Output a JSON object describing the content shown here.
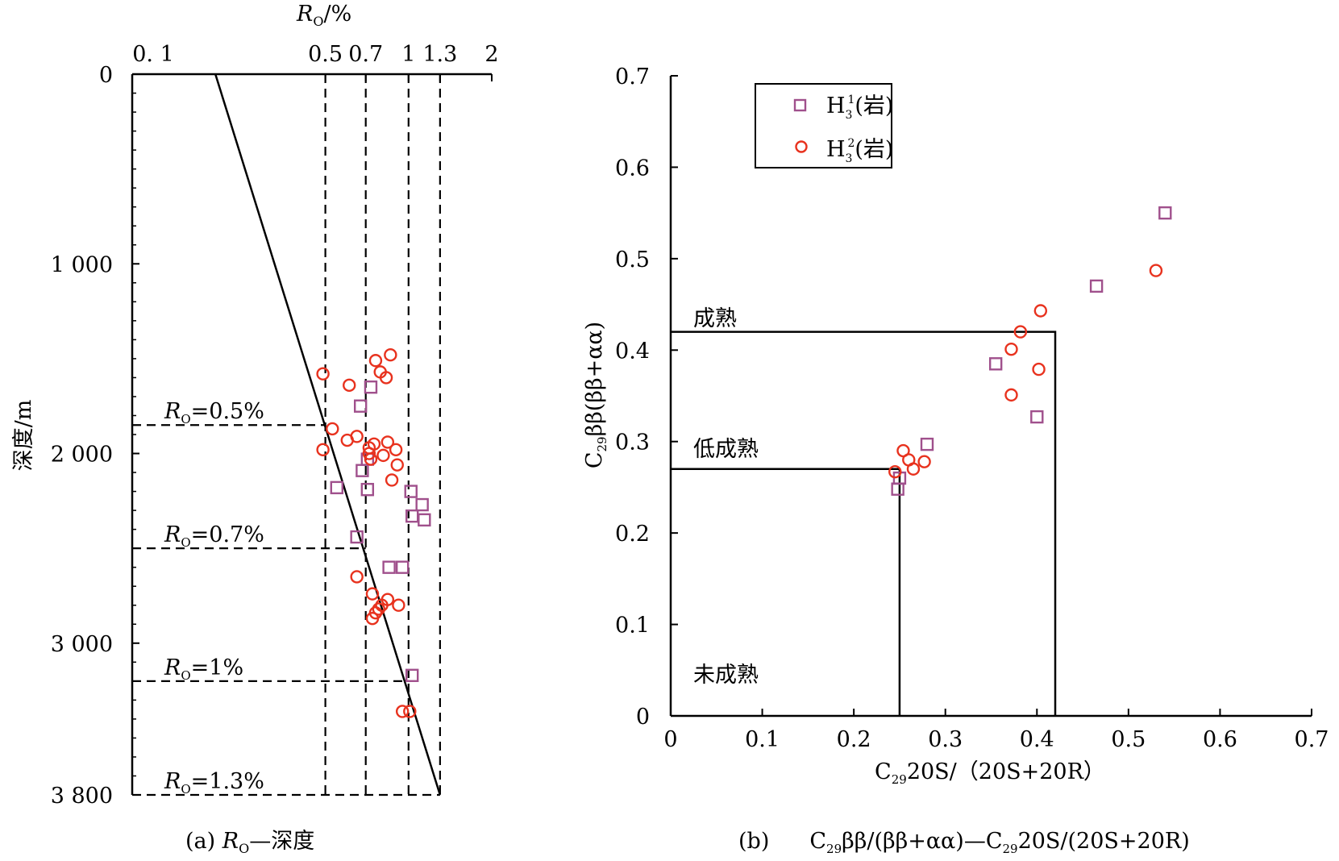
{
  "colors": {
    "h31": "#a0508c",
    "h32": "#e8321e",
    "axis": "#000000"
  },
  "chart_data": [
    {
      "type": "scatter",
      "x_axis_title": "R",
      "x_axis_title_sub": "O",
      "x_axis_title_unit": "/%",
      "x_scale": "log",
      "x_ticks": [
        "0. 1",
        "0.5",
        "0.7",
        "1",
        "1.3",
        "2"
      ],
      "y_axis_title": "深度/m",
      "y_ticks": [
        "0",
        "1 000",
        "2 000",
        "3 000",
        "3 800"
      ],
      "ylim": [
        0,
        3800
      ],
      "trend_line": {
        "x": [
          0.2,
          1.3
        ],
        "y": [
          0,
          3800
        ]
      },
      "vertical_dashed": [
        0.5,
        0.7,
        1.0,
        1.3
      ],
      "thresholds": [
        {
          "label": "=0.5%",
          "depth": 1850
        },
        {
          "label": "=0.7%",
          "depth": 2500
        },
        {
          "label": "=1%",
          "depth": 3200
        },
        {
          "label": "=1.3%",
          "depth": 3800
        }
      ],
      "caption_prefix": "(a) ",
      "caption_r": "R",
      "caption_sub": "O",
      "caption_suffix": "—深度",
      "series": [
        {
          "marker": "square",
          "points": [
            {
              "x": 0.73,
              "y": 1650
            },
            {
              "x": 0.67,
              "y": 1750
            },
            {
              "x": 0.71,
              "y": 2030
            },
            {
              "x": 0.68,
              "y": 2090
            },
            {
              "x": 0.55,
              "y": 2180
            },
            {
              "x": 0.71,
              "y": 2190
            },
            {
              "x": 1.02,
              "y": 2200
            },
            {
              "x": 1.12,
              "y": 2270
            },
            {
              "x": 1.03,
              "y": 2330
            },
            {
              "x": 1.14,
              "y": 2350
            },
            {
              "x": 0.65,
              "y": 2440
            },
            {
              "x": 0.85,
              "y": 2600
            },
            {
              "x": 0.95,
              "y": 2600
            },
            {
              "x": 1.03,
              "y": 3170
            }
          ]
        },
        {
          "marker": "circle",
          "points": [
            {
              "x": 0.86,
              "y": 1480
            },
            {
              "x": 0.76,
              "y": 1510
            },
            {
              "x": 0.79,
              "y": 1570
            },
            {
              "x": 0.83,
              "y": 1600
            },
            {
              "x": 0.49,
              "y": 1580
            },
            {
              "x": 0.61,
              "y": 1640
            },
            {
              "x": 0.53,
              "y": 1870
            },
            {
              "x": 0.65,
              "y": 1910
            },
            {
              "x": 0.6,
              "y": 1930
            },
            {
              "x": 0.84,
              "y": 1940
            },
            {
              "x": 0.75,
              "y": 1950
            },
            {
              "x": 0.72,
              "y": 1970
            },
            {
              "x": 0.49,
              "y": 1980
            },
            {
              "x": 0.9,
              "y": 1980
            },
            {
              "x": 0.72,
              "y": 2000
            },
            {
              "x": 0.81,
              "y": 2010
            },
            {
              "x": 0.73,
              "y": 2030
            },
            {
              "x": 0.91,
              "y": 2060
            },
            {
              "x": 0.87,
              "y": 2140
            },
            {
              "x": 0.65,
              "y": 2650
            },
            {
              "x": 0.74,
              "y": 2740
            },
            {
              "x": 0.84,
              "y": 2770
            },
            {
              "x": 0.8,
              "y": 2800
            },
            {
              "x": 0.92,
              "y": 2800
            },
            {
              "x": 0.78,
              "y": 2820
            },
            {
              "x": 0.76,
              "y": 2840
            },
            {
              "x": 0.74,
              "y": 2870
            },
            {
              "x": 0.95,
              "y": 3360
            },
            {
              "x": 1.01,
              "y": 3360
            }
          ]
        }
      ]
    },
    {
      "type": "scatter",
      "x_axis_title_pre": "C",
      "x_axis_title_sub": "29",
      "x_axis_title_post": "20S/（20S+20R）",
      "y_axis_title_pre": "C",
      "y_axis_title_sub": "29",
      "y_axis_title_post": "ββ(ββ+αα)",
      "x_ticks": [
        "0",
        "0.1",
        "0.2",
        "0.3",
        "0.4",
        "0.5",
        "0.6",
        "0.7"
      ],
      "y_ticks": [
        "0",
        "0.1",
        "0.2",
        "0.3",
        "0.4",
        "0.5",
        "0.6",
        "0.7"
      ],
      "xlim": [
        0,
        0.7
      ],
      "ylim": [
        0,
        0.7
      ],
      "boundaries": [
        {
          "x": 0.25,
          "y": 0.27
        },
        {
          "x": 0.42,
          "y": 0.42
        }
      ],
      "zones": [
        {
          "label": "成熟"
        },
        {
          "label": "低成熟"
        },
        {
          "label": "未成熟"
        }
      ],
      "legend": [
        {
          "marker": "square",
          "pre": "H",
          "sub": "3",
          "sup": "1",
          "post": "(岩)"
        },
        {
          "marker": "circle",
          "pre": "H",
          "sub": "3",
          "sup": "2",
          "post": "(岩)"
        }
      ],
      "legend_position": "top-left",
      "caption": {
        "prefix": "(b)",
        "c1": "C",
        "s1": "29",
        "mid": "ββ/(ββ+αα)—C",
        "s2": "29",
        "end": "20S/(20S+20R)"
      },
      "series": [
        {
          "marker": "square",
          "points": [
            {
              "x": 0.28,
              "y": 0.297
            },
            {
              "x": 0.25,
              "y": 0.26
            },
            {
              "x": 0.248,
              "y": 0.248
            },
            {
              "x": 0.355,
              "y": 0.385
            },
            {
              "x": 0.4,
              "y": 0.327
            },
            {
              "x": 0.465,
              "y": 0.47
            },
            {
              "x": 0.54,
              "y": 0.55
            }
          ]
        },
        {
          "marker": "circle",
          "points": [
            {
              "x": 0.254,
              "y": 0.29
            },
            {
              "x": 0.26,
              "y": 0.28
            },
            {
              "x": 0.245,
              "y": 0.267
            },
            {
              "x": 0.265,
              "y": 0.27
            },
            {
              "x": 0.277,
              "y": 0.278
            },
            {
              "x": 0.372,
              "y": 0.401
            },
            {
              "x": 0.382,
              "y": 0.42
            },
            {
              "x": 0.404,
              "y": 0.443
            },
            {
              "x": 0.372,
              "y": 0.351
            },
            {
              "x": 0.402,
              "y": 0.379
            },
            {
              "x": 0.53,
              "y": 0.487
            }
          ]
        }
      ]
    }
  ]
}
